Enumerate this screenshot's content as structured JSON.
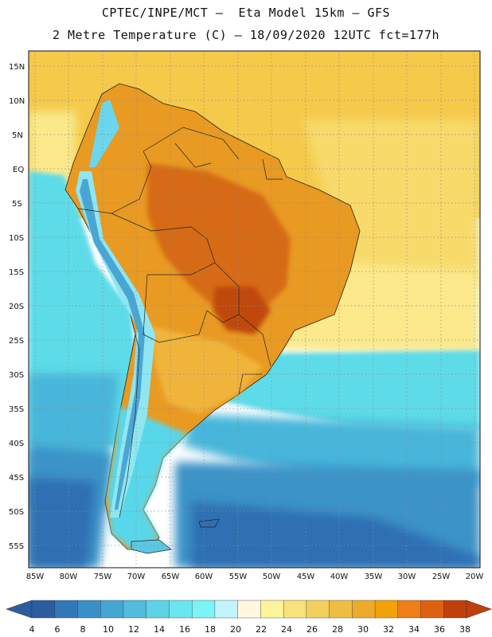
{
  "header": {
    "line1": "CPTEC/INPE/MCT –  Eta Model 15km – GFS",
    "line2": "2 Metre Temperature (C) – 18/09/2020 12UTC fct=177h"
  },
  "map": {
    "lat_labels": [
      "15N",
      "10N",
      "5N",
      "EQ",
      "5S",
      "10S",
      "15S",
      "20S",
      "25S",
      "30S",
      "35S",
      "40S",
      "45S",
      "50S",
      "55S"
    ],
    "lon_labels": [
      "85W",
      "80W",
      "75W",
      "70W",
      "65W",
      "60W",
      "55W",
      "50W",
      "45W",
      "40W",
      "35W",
      "30W",
      "25W",
      "20W"
    ],
    "regions": {
      "ocean_tropical": "#f5c94a",
      "ocean_equatorial": "#f7da6a",
      "ocean_subtropical": "#fbe98c",
      "ocean_cool": "#5ddbe8",
      "ocean_cold": "#46b6da",
      "ocean_colder": "#3a93c8",
      "ocean_coldest": "#2f6fb2",
      "land_hot": "#e99a22",
      "land_hotter": "#d66a12",
      "land_hottest": "#bf4a10",
      "land_warm": "#f1b43a",
      "andes_cold": "#49a6d4",
      "andes_cool": "#8fe6f2",
      "patagonia": "#59d7ea"
    }
  },
  "colorbar": {
    "colors": [
      "#2c5e9f",
      "#3178b8",
      "#3a8fc6",
      "#45a6d3",
      "#52bcdd",
      "#5fd2e6",
      "#6ae6ef",
      "#7cf3f8",
      "#c4f4fb",
      "#fff8de",
      "#fcf59a",
      "#f8e27a",
      "#f3cf5e",
      "#efbd44",
      "#ecac2a",
      "#f2a208",
      "#ed7e18",
      "#dd6210",
      "#c0400b"
    ],
    "low_arrow_color": "#2c5e9f",
    "high_arrow_color": "#c0400b",
    "labels": [
      "4",
      "6",
      "8",
      "10",
      "12",
      "14",
      "16",
      "18",
      "20",
      "22",
      "24",
      "26",
      "28",
      "30",
      "32",
      "34",
      "36",
      "38"
    ]
  }
}
